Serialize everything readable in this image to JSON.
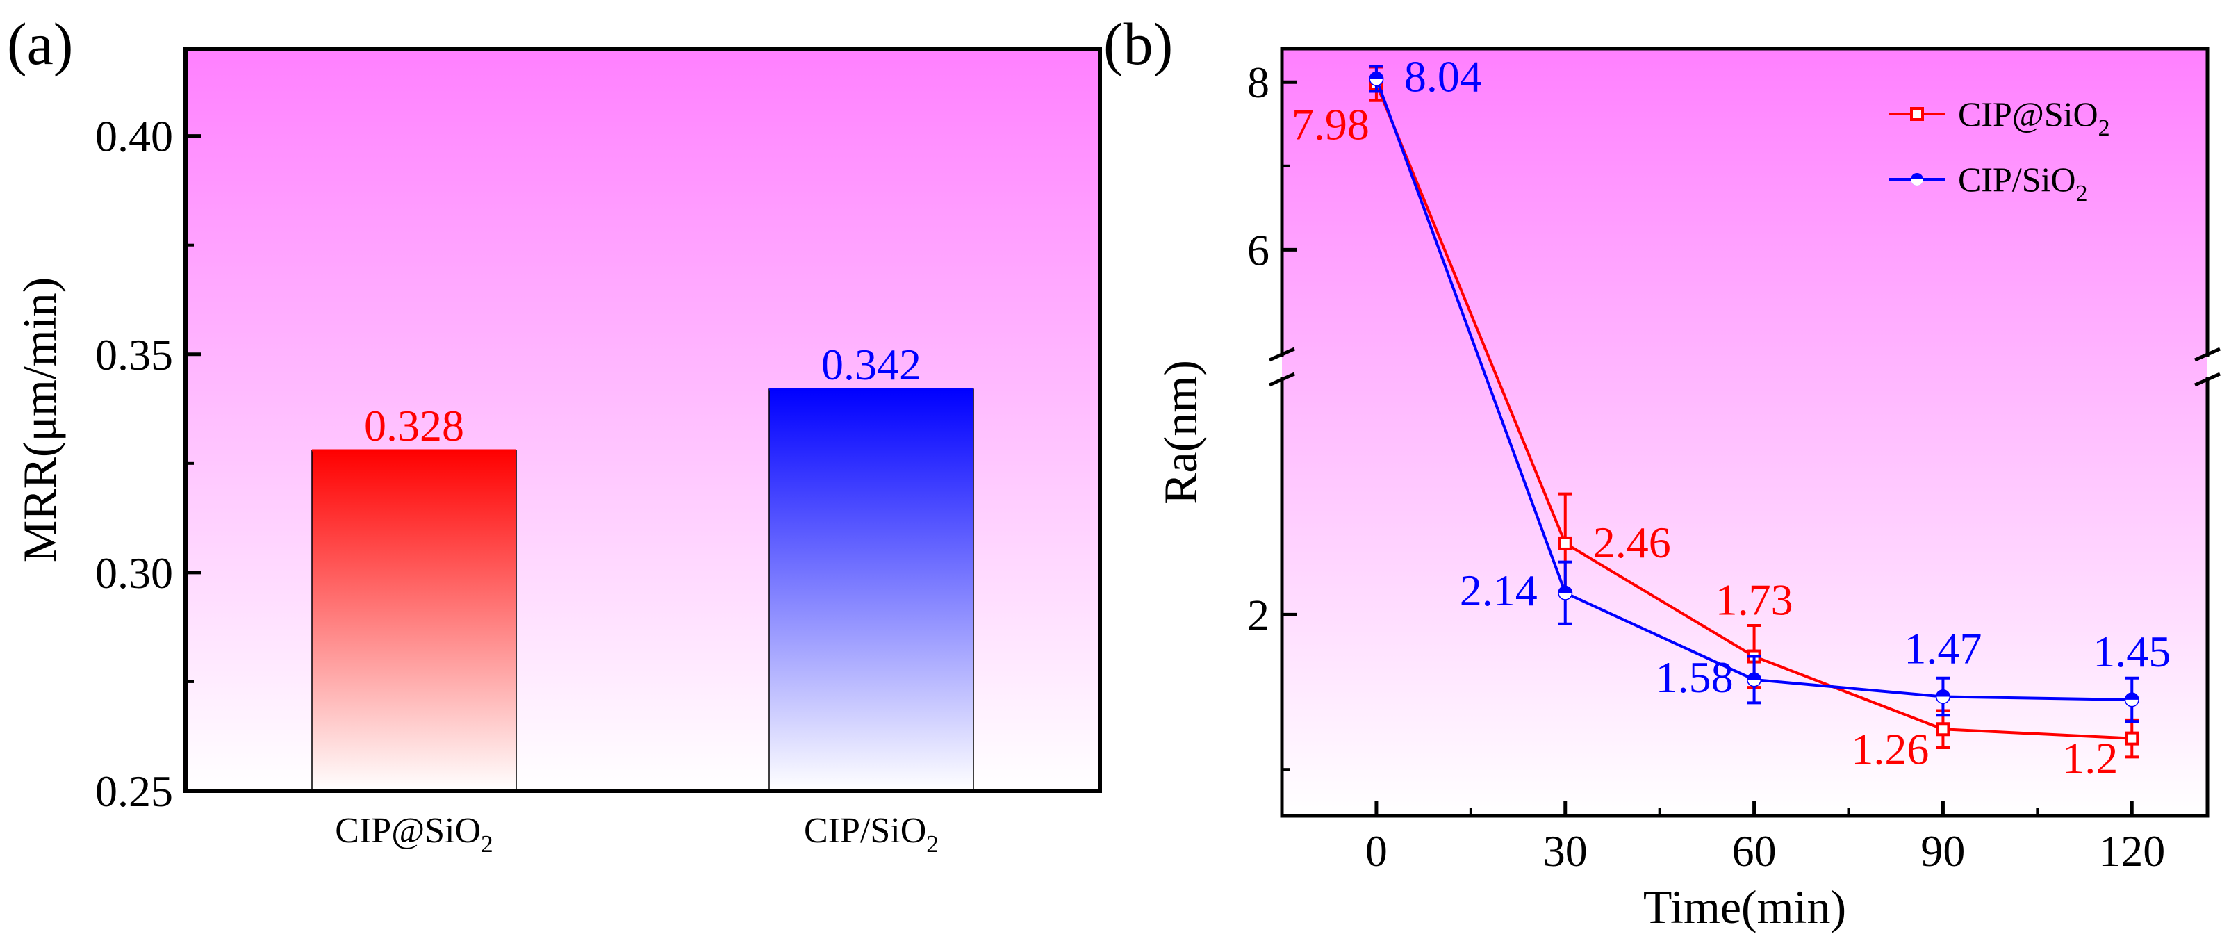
{
  "colors": {
    "red": "#ff0000",
    "blue": "#0000ff",
    "axis": "#000000",
    "bg_top": "#ff80ff",
    "bg_bottom": "#ffffff"
  },
  "chart_data": [
    {
      "panel_label": "(a)",
      "type": "bar",
      "categories": [
        "CIP@SiO2",
        "CIP/SiO2"
      ],
      "category_display": [
        {
          "base": "CIP@SiO",
          "sub": "2"
        },
        {
          "base": "CIP/SiO",
          "sub": "2"
        }
      ],
      "values": [
        0.328,
        0.342
      ],
      "value_labels": [
        "0.328",
        "0.342"
      ],
      "bar_colors": [
        "#ff0000",
        "#0000ff"
      ],
      "xlabel": "",
      "ylabel": "MRR(μm/min)",
      "ylim": [
        0.25,
        0.42
      ],
      "yticks": [
        "0.25",
        "0.30",
        "0.35",
        "0.40"
      ],
      "grid": false
    },
    {
      "panel_label": "(b)",
      "type": "line",
      "xlabel": "Time(min)",
      "ylabel": "Ra(nm)",
      "x": [
        0,
        30,
        60,
        90,
        120
      ],
      "xticks": [
        "0",
        "30",
        "60",
        "90",
        "120"
      ],
      "xlim": [
        -15,
        132
      ],
      "yticks": [
        "2",
        "6",
        "8"
      ],
      "y_axis_break": [
        3.6,
        4.9
      ],
      "ylim": [
        0.7,
        8.4
      ],
      "series": [
        {
          "name": "CIP@SiO2",
          "legend": {
            "base": "CIP@SiO",
            "sub": "2"
          },
          "color": "#ff0000",
          "marker": "square-open",
          "values": [
            7.98,
            2.46,
            1.73,
            1.26,
            1.2
          ],
          "labels": [
            "7.98",
            "2.46",
            "1.73",
            "1.26",
            "1.2"
          ],
          "error": [
            0.2,
            0.32,
            0.2,
            0.12,
            0.12
          ]
        },
        {
          "name": "CIP/SiO2",
          "legend": {
            "base": "CIP/SiO",
            "sub": "2"
          },
          "color": "#0000ff",
          "marker": "circle-half",
          "values": [
            8.04,
            2.14,
            1.58,
            1.47,
            1.45
          ],
          "labels": [
            "8.04",
            "2.14",
            "1.58",
            "1.47",
            "1.45"
          ],
          "error": [
            0.15,
            0.2,
            0.15,
            0.12,
            0.14
          ]
        }
      ],
      "legend_position": "top-right",
      "grid": false
    }
  ]
}
